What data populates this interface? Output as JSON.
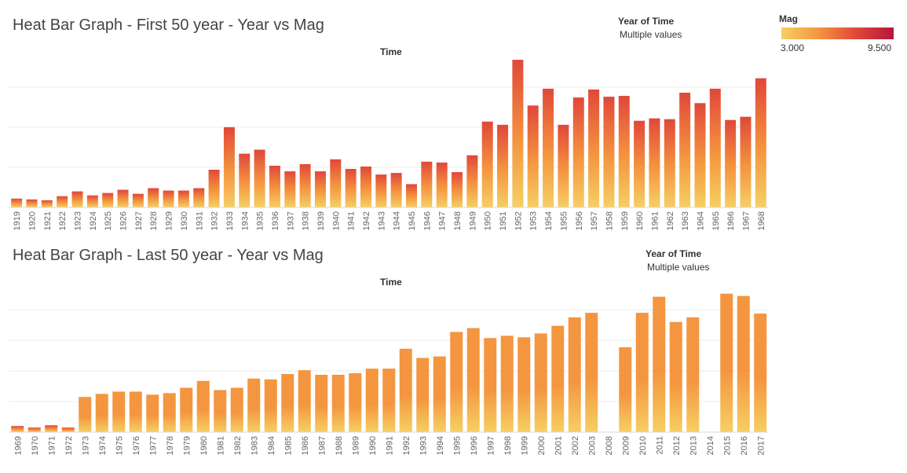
{
  "legend": {
    "title": "Mag",
    "min_label": "3.000",
    "max_label": "9.500",
    "colors": [
      "#f6cf63",
      "#f4953f",
      "#e1473a",
      "#b5163a"
    ]
  },
  "chart_data": [
    {
      "type": "bar",
      "title": "Heat Bar Graph - First 50 year - Year vs Mag",
      "axis_title": "Time",
      "filter": {
        "label": "Year of Time",
        "value": "Multiple values"
      },
      "ylim": [
        0,
        190
      ],
      "categories": [
        "1919",
        "1920",
        "1921",
        "1922",
        "1923",
        "1924",
        "1925",
        "1926",
        "1927",
        "1928",
        "1929",
        "1930",
        "1931",
        "1932",
        "1933",
        "1934",
        "1935",
        "1936",
        "1937",
        "1938",
        "1939",
        "1940",
        "1941",
        "1942",
        "1943",
        "1944",
        "1945",
        "1946",
        "1947",
        "1948",
        "1949",
        "1950",
        "1951",
        "1952",
        "1953",
        "1954",
        "1955",
        "1956",
        "1957",
        "1958",
        "1959",
        "1960",
        "1961",
        "1962",
        "1963",
        "1964",
        "1965",
        "1966",
        "1967",
        "1968"
      ],
      "values": [
        11,
        10,
        9,
        14,
        20,
        15,
        18,
        22,
        17,
        24,
        21,
        21,
        24,
        47,
        100,
        67,
        72,
        52,
        45,
        54,
        45,
        60,
        48,
        51,
        41,
        43,
        29,
        57,
        56,
        44,
        65,
        107,
        103,
        184,
        127,
        148,
        103,
        137,
        147,
        138,
        139,
        108,
        111,
        110,
        143,
        130,
        148,
        109,
        113,
        161
      ]
    },
    {
      "type": "bar",
      "title": "Heat Bar Graph - Last 50 year - Year vs Mag",
      "axis_title": "Time",
      "filter": {
        "label": "Year of Time",
        "value": "Multiple values"
      },
      "ylim": [
        0,
        190
      ],
      "categories": [
        "1969",
        "1970",
        "1971",
        "1972",
        "1973",
        "1974",
        "1975",
        "1976",
        "1977",
        "1978",
        "1979",
        "1980",
        "1981",
        "1982",
        "1983",
        "1984",
        "1985",
        "1986",
        "1987",
        "1988",
        "1989",
        "1990",
        "1991",
        "1992",
        "1993",
        "1994",
        "1995",
        "1996",
        "1997",
        "1998",
        "1999",
        "2000",
        "2001",
        "2002",
        "2003",
        "2008",
        "2009",
        "2010",
        "2011",
        "2012",
        "2013",
        "2014",
        "2015",
        "2016",
        "2017"
      ],
      "values": [
        8,
        6,
        9,
        6,
        46,
        50,
        53,
        53,
        49,
        51,
        58,
        67,
        55,
        58,
        70,
        69,
        76,
        81,
        75,
        75,
        77,
        83,
        83,
        109,
        97,
        99,
        131,
        136,
        123,
        126,
        124,
        129,
        139,
        150,
        156,
        0,
        111,
        156,
        177,
        144,
        150,
        0,
        181,
        178,
        155
      ]
    }
  ]
}
